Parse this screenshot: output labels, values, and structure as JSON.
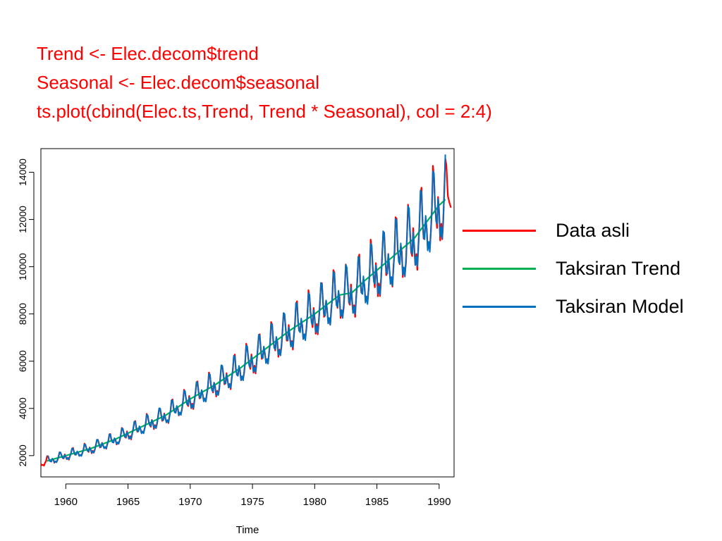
{
  "code": {
    "lines": [
      "Trend <- Elec.decom$trend",
      "Seasonal <- Elec.decom$seasonal",
      "ts.plot(cbind(Elec.ts,Trend, Trend * Seasonal), col = 2:4)"
    ],
    "color": "#ff0000"
  },
  "legend": {
    "items": [
      {
        "label": "Data asli",
        "color": "#ff0000"
      },
      {
        "label": "Taksiran Trend",
        "color": "#00b050"
      },
      {
        "label": "Taksiran Model",
        "color": "#0070c0"
      }
    ]
  },
  "chart_data": {
    "type": "line",
    "title": "",
    "xlabel": "Time",
    "ylabel": "",
    "xlim": [
      1958,
      1991.2
    ],
    "ylim": [
      1100,
      15000
    ],
    "xticks": [
      1960,
      1965,
      1970,
      1975,
      1980,
      1985,
      1990
    ],
    "yticks": [
      2000,
      4000,
      6000,
      8000,
      10000,
      12000,
      14000
    ],
    "grid": false,
    "frequency": 12,
    "start": 1958,
    "series": [
      {
        "name": "Data asli",
        "color": "#ff0000",
        "key": "data",
        "trend_anchors": [
          [
            1958.0,
            1700
          ],
          [
            1960.0,
            2000
          ],
          [
            1962.0,
            2300
          ],
          [
            1964.0,
            2700
          ],
          [
            1966.0,
            3200
          ],
          [
            1968.0,
            3700
          ],
          [
            1970.0,
            4400
          ],
          [
            1972.0,
            5000
          ],
          [
            1974.0,
            5700
          ],
          [
            1975.0,
            6100
          ],
          [
            1976.0,
            6500
          ],
          [
            1978.0,
            7300
          ],
          [
            1980.0,
            8000
          ],
          [
            1981.0,
            8400
          ],
          [
            1982.0,
            8800
          ],
          [
            1983.0,
            8900
          ],
          [
            1984.0,
            9400
          ],
          [
            1986.0,
            10300
          ],
          [
            1988.0,
            11200
          ],
          [
            1990.0,
            12600
          ],
          [
            1990.6,
            12900
          ]
        ],
        "seasonal_factor_by_month": [
          0.98,
          0.92,
          0.94,
          0.91,
          0.96,
          1.02,
          1.11,
          1.1,
          1.02,
          0.97,
          0.96,
          1.02
        ],
        "amplitude_growth": [
          1.0,
          1.35
        ]
      },
      {
        "name": "Taksiran Trend",
        "color": "#00b050",
        "key": "trend",
        "range": [
          1958.5,
          1990.5
        ]
      },
      {
        "name": "Taksiran Model",
        "color": "#0070c0",
        "key": "model",
        "range": [
          1958.5,
          1990.5
        ]
      }
    ],
    "data_end": {
      "x": 1990.95,
      "peak": 14300,
      "tail": 12500
    }
  }
}
